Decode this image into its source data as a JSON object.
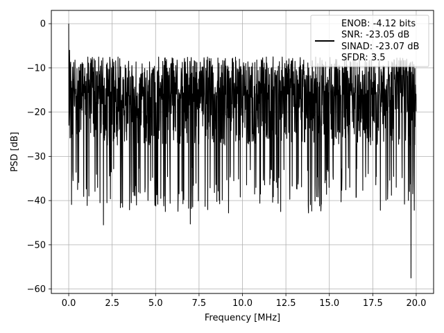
{
  "chart_data": {
    "type": "line",
    "title": "",
    "xlabel": "Frequency [MHz]",
    "ylabel": "PSD [dB]",
    "xlim": [
      -1.0,
      21.0
    ],
    "ylim": [
      -61.0,
      3.0
    ],
    "x_ticks": [
      0.0,
      2.5,
      5.0,
      7.5,
      10.0,
      12.5,
      15.0,
      17.5,
      20.0
    ],
    "x_tick_labels": [
      "0.0",
      "2.5",
      "5.0",
      "7.5",
      "10.0",
      "12.5",
      "15.0",
      "17.5",
      "20.0"
    ],
    "y_ticks": [
      0,
      -10,
      -20,
      -30,
      -40,
      -50,
      -60
    ],
    "y_tick_labels": [
      "0",
      "−10",
      "−20",
      "−30",
      "−40",
      "−50",
      "−60"
    ],
    "grid": true,
    "legend_position": "top-right",
    "legend_lines": [
      "ENOB: -4.12 bits",
      "SNR: -23.05 dB",
      "SINAD: -23.07 dB",
      "SFDR: 3.5"
    ],
    "series": [
      {
        "color": "#000000",
        "x_start": 0.0,
        "x_end": 20.0,
        "envelope_max": -7.5,
        "floor_mean": -18.5,
        "notable_points": [
          {
            "x": 0.0,
            "y": 0.0
          },
          {
            "x": 0.05,
            "y": -6.0
          },
          {
            "x": 0.15,
            "y": -13.0
          },
          {
            "x": 0.25,
            "y": -35.5
          },
          {
            "x": 1.8,
            "y": -40.5
          },
          {
            "x": 2.0,
            "y": -45.5
          },
          {
            "x": 2.2,
            "y": -40.5
          },
          {
            "x": 3.6,
            "y": -40.5
          },
          {
            "x": 5.3,
            "y": -39.5
          },
          {
            "x": 7.0,
            "y": -45.3
          },
          {
            "x": 9.2,
            "y": -42.8
          },
          {
            "x": 12.2,
            "y": -42.5
          },
          {
            "x": 13.8,
            "y": -42.8
          },
          {
            "x": 19.7,
            "y": -57.5
          }
        ]
      }
    ]
  }
}
